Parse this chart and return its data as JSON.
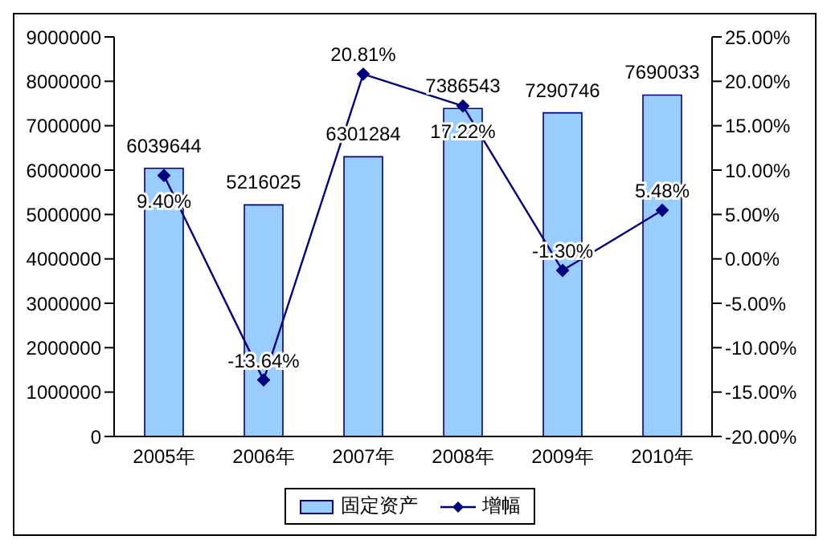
{
  "chart_data": {
    "type": "bar",
    "categories": [
      "2005年",
      "2006年",
      "2007年",
      "2008年",
      "2009年",
      "2010年"
    ],
    "series": [
      {
        "name": "固定资产",
        "color": "#99ccff",
        "values": [
          6039644,
          5216025,
          6301284,
          7386543,
          7290746,
          7690033
        ],
        "value_labels": [
          "6039644",
          "5216025",
          "6301284",
          "7386543",
          "7290746",
          "7690033"
        ]
      },
      {
        "name": "增幅",
        "type": "line",
        "axis": "y2",
        "color": "#000080",
        "marker": "diamond",
        "values": [
          9.4,
          -13.64,
          20.81,
          17.22,
          -1.3,
          5.48
        ],
        "value_labels": [
          "9.40%",
          "-13.64%",
          "20.81%",
          "17.22%",
          "-1.30%",
          "5.48%"
        ]
      }
    ],
    "ylim": [
      0,
      9000000
    ],
    "yticks": [
      0,
      1000000,
      2000000,
      3000000,
      4000000,
      5000000,
      6000000,
      7000000,
      8000000,
      9000000
    ],
    "y2lim": [
      -20,
      25
    ],
    "y2ticks": [
      {
        "value": -20,
        "label": "-20.00%"
      },
      {
        "value": -15,
        "label": "-15.00%"
      },
      {
        "value": -10,
        "label": "-10.00%"
      },
      {
        "value": -5,
        "label": "-5.00%"
      },
      {
        "value": 0,
        "label": "0.00%"
      },
      {
        "value": 5,
        "label": "5.00%"
      },
      {
        "value": 10,
        "label": "10.00%"
      },
      {
        "value": 15,
        "label": "15.00%"
      },
      {
        "value": 20,
        "label": "20.00%"
      },
      {
        "value": 25,
        "label": "25.00%"
      }
    ],
    "legend": "bottom",
    "grid": false
  }
}
